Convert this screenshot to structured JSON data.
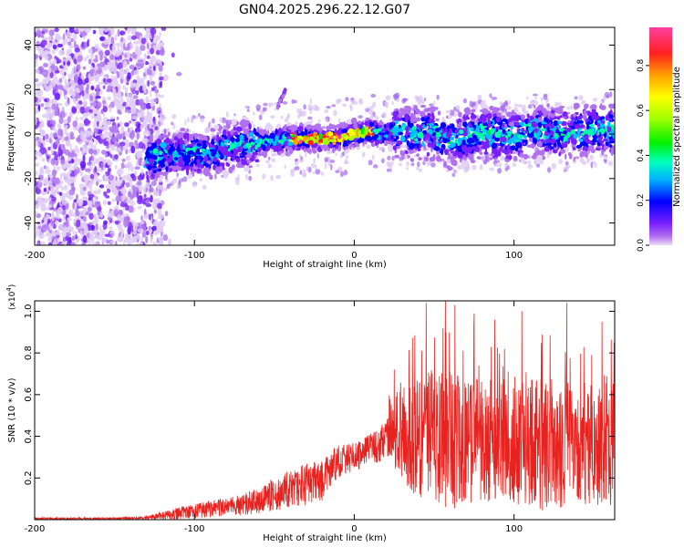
{
  "title": "GN04.2025.296.22.12.G07",
  "chart_data": [
    {
      "type": "heatmap",
      "xlabel": "Height of straight line (km)",
      "ylabel": "Frequency (Hz)",
      "xlim": [
        -200,
        163
      ],
      "ylim": [
        -50,
        48
      ],
      "x_ticks": [
        -200,
        -100,
        0,
        100
      ],
      "y_ticks": [
        -40,
        -20,
        0,
        20,
        40
      ],
      "colorbar": {
        "label": "Normalized spectral amplitude",
        "range": [
          0,
          0.97
        ],
        "ticks": [
          0.0,
          0.2,
          0.4,
          0.6,
          0.8
        ],
        "tick_labels": [
          "0.0",
          "0.2",
          "0.4",
          "0.6",
          "0.8"
        ],
        "colors": [
          "#e6d2f5",
          "#b070f0",
          "#7a1fff",
          "#0000ff",
          "#00c0ff",
          "#00ffa0",
          "#00f000",
          "#a0ff00",
          "#ffff00",
          "#ffa000",
          "#ff2020",
          "#ff40a0"
        ]
      },
      "frequency_track": [
        {
          "x": -130,
          "y": -12
        },
        {
          "x": -120,
          "y": -9
        },
        {
          "x": -110,
          "y": -9
        },
        {
          "x": -100,
          "y": -8
        },
        {
          "x": -90,
          "y": -9
        },
        {
          "x": -80,
          "y": -6
        },
        {
          "x": -70,
          "y": -5
        },
        {
          "x": -60,
          "y": -4
        },
        {
          "x": -50,
          "y": -3
        },
        {
          "x": -40,
          "y": -2
        },
        {
          "x": -30,
          "y": -2
        },
        {
          "x": -20,
          "y": -2
        },
        {
          "x": -10,
          "y": -2
        },
        {
          "x": 0,
          "y": 0
        },
        {
          "x": 10,
          "y": 1
        },
        {
          "x": 20,
          "y": 0
        },
        {
          "x": 30,
          "y": 2
        },
        {
          "x": 40,
          "y": 0
        },
        {
          "x": 50,
          "y": 1
        },
        {
          "x": 60,
          "y": -4
        },
        {
          "x": 70,
          "y": -1
        },
        {
          "x": 80,
          "y": 1
        },
        {
          "x": 90,
          "y": 0
        },
        {
          "x": 100,
          "y": -1
        },
        {
          "x": 110,
          "y": 2
        },
        {
          "x": 120,
          "y": 1
        },
        {
          "x": 130,
          "y": 0
        },
        {
          "x": 140,
          "y": 1
        },
        {
          "x": 150,
          "y": 2
        },
        {
          "x": 163,
          "y": 2
        }
      ],
      "noise_region_x": [
        -200,
        -120
      ],
      "feature_streak": {
        "x_start": -48,
        "y_start": 12,
        "x_end": -43,
        "y_end": 20
      }
    },
    {
      "type": "line",
      "xlabel": "Height of straight line (km)",
      "ylabel": "SNR (10 * v/v)",
      "scale_label": "(x10",
      "scale_exponent": "4",
      "xlim": [
        -200,
        163
      ],
      "ylim": [
        0,
        1.05
      ],
      "x_ticks": [
        -200,
        -100,
        0,
        100
      ],
      "y_ticks": [
        0.2,
        0.4,
        0.6,
        0.8,
        1.0
      ],
      "y_tick_labels": [
        "0.2",
        "0.4",
        "0.6",
        "0.8",
        "1.0"
      ],
      "color": "#e8231f",
      "envelope": [
        {
          "x": -200,
          "mean": 0.005,
          "spread": 0.005
        },
        {
          "x": -150,
          "mean": 0.005,
          "spread": 0.006
        },
        {
          "x": -130,
          "mean": 0.008,
          "spread": 0.01
        },
        {
          "x": -110,
          "mean": 0.03,
          "spread": 0.03
        },
        {
          "x": -90,
          "mean": 0.05,
          "spread": 0.04
        },
        {
          "x": -70,
          "mean": 0.07,
          "spread": 0.05
        },
        {
          "x": -50,
          "mean": 0.12,
          "spread": 0.08
        },
        {
          "x": -40,
          "mean": 0.15,
          "spread": 0.09
        },
        {
          "x": -30,
          "mean": 0.17,
          "spread": 0.1
        },
        {
          "x": -20,
          "mean": 0.19,
          "spread": 0.1
        },
        {
          "x": -10,
          "mean": 0.28,
          "spread": 0.08
        },
        {
          "x": 0,
          "mean": 0.3,
          "spread": 0.07
        },
        {
          "x": 10,
          "mean": 0.34,
          "spread": 0.07
        },
        {
          "x": 20,
          "mean": 0.38,
          "spread": 0.1
        },
        {
          "x": 25,
          "mean": 0.42,
          "spread": 0.18
        },
        {
          "x": 40,
          "mean": 0.4,
          "spread": 0.3
        },
        {
          "x": 60,
          "mean": 0.38,
          "spread": 0.34
        },
        {
          "x": 80,
          "mean": 0.38,
          "spread": 0.3
        },
        {
          "x": 100,
          "mean": 0.37,
          "spread": 0.3
        },
        {
          "x": 120,
          "mean": 0.36,
          "spread": 0.32
        },
        {
          "x": 140,
          "mean": 0.36,
          "spread": 0.3
        },
        {
          "x": 163,
          "mean": 0.36,
          "spread": 0.3
        }
      ],
      "peaks": [
        {
          "x": 45,
          "y": 1.04
        },
        {
          "x": 57,
          "y": 1.05
        },
        {
          "x": 63,
          "y": 1.03
        },
        {
          "x": 75,
          "y": 0.99
        },
        {
          "x": 88,
          "y": 0.96
        },
        {
          "x": 105,
          "y": 1.0
        },
        {
          "x": 133,
          "y": 1.04
        },
        {
          "x": 155,
          "y": 0.95
        },
        {
          "x": 25,
          "y": 0.72
        }
      ]
    }
  ]
}
